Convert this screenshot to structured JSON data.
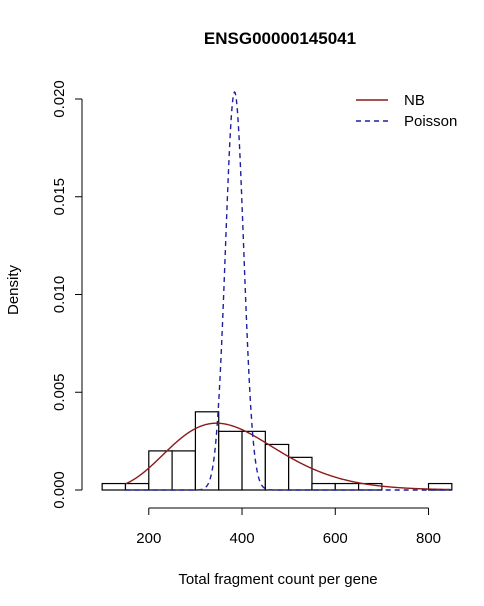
{
  "chart_data": {
    "type": "histogram",
    "title": "ENSG00000145041",
    "xlabel": "Total fragment count per gene",
    "ylabel": "Density",
    "xlim": [
      90,
      860
    ],
    "ylim": [
      0,
      0.02
    ],
    "x_ticks": [
      200,
      400,
      600,
      800
    ],
    "y_ticks": [
      0.0,
      0.005,
      0.01,
      0.015,
      0.02
    ],
    "x_tick_labels": [
      "200",
      "400",
      "600",
      "800"
    ],
    "y_tick_labels": [
      "0.000",
      "0.005",
      "0.010",
      "0.015",
      "0.020"
    ],
    "grid": false,
    "legend_position": "top-right",
    "histogram": {
      "bin_edges": [
        100,
        150,
        200,
        250,
        300,
        350,
        400,
        450,
        500,
        550,
        600,
        650,
        700,
        750,
        800,
        850
      ],
      "density": [
        0.00033,
        0.00033,
        0.002,
        0.002,
        0.004,
        0.003,
        0.003,
        0.00233,
        0.00167,
        0.00033,
        0.00033,
        0.00033,
        0.0,
        0.0,
        0.00033
      ],
      "fill": "#ffffff",
      "edge_color": "#000000"
    },
    "series": [
      {
        "name": "NB",
        "line_style": "solid",
        "color": "#8b1a1a",
        "x_range": [
          150,
          850
        ],
        "curve": "gamma",
        "mean": 384,
        "sd": 122
      },
      {
        "name": "Poisson",
        "line_style": "dashed",
        "color": "#1f1fa0",
        "x_range": [
          150,
          850
        ],
        "curve": "normal",
        "mean": 384,
        "sd": 19.6
      }
    ]
  }
}
